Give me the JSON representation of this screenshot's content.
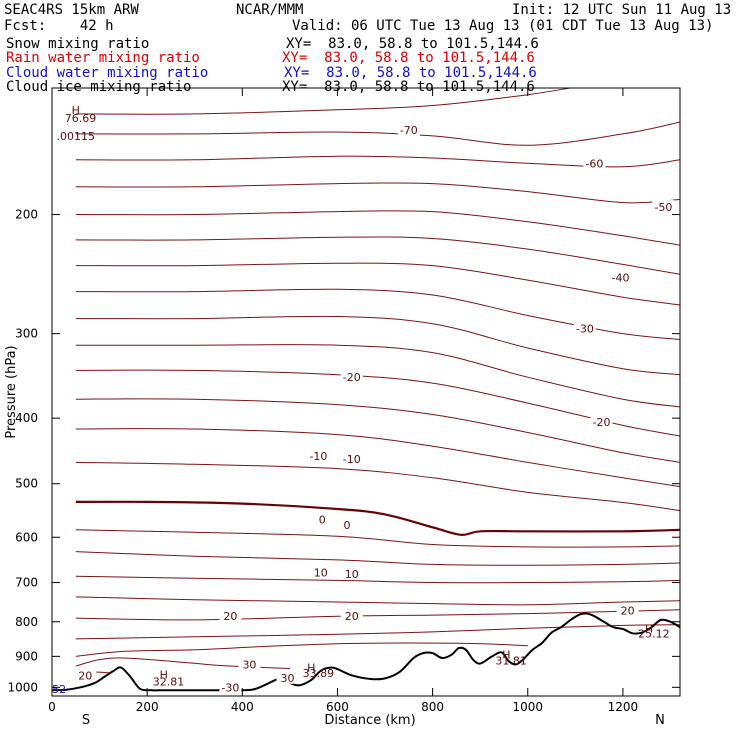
{
  "header": {
    "model": "SEAC4RS 15km ARW",
    "center": "NCAR/MMM",
    "init": "Init: 12 UTC Sun 11 Aug 13",
    "fcst": "Fcst:    42 h",
    "valid": "Valid: 06 UTC Tue 13 Aug 13 (01 CDT Tue 13 Aug 13)",
    "fields": [
      {
        "label": "Snow mixing ratio",
        "xy": "XY=  83.0, 58.8 to 101.5,144.6",
        "color": "#000000"
      },
      {
        "label": "Rain water mixing ratio",
        "xy": "XY=  83.0, 58.8 to 101.5,144.6",
        "color": "#e00000"
      },
      {
        "label": "Cloud water mixing ratio",
        "xy": "XY=  83.0, 58.8 to 101.5,144.6",
        "color": "#1010d0"
      },
      {
        "label": "Cloud ice mixing ratio",
        "xy": "XY=  83.0, 58.8 to 101.5,144.6",
        "color": "#000000"
      }
    ]
  },
  "chart_data": {
    "type": "line",
    "xlabel": "Distance (km)",
    "ylabel": "Pressure (hPa)",
    "xlim": [
      0,
      1320
    ],
    "ylim": [
      1030,
      130
    ],
    "yscale": "log",
    "x_ticks": [
      0,
      200,
      400,
      600,
      800,
      1000,
      1200
    ],
    "y_ticks": [
      200,
      300,
      400,
      500,
      600,
      700,
      800,
      900,
      1000
    ],
    "left_end_label": "S",
    "right_end_label": "N",
    "isotherm_interval_C": 5,
    "contour_color": "#7a1414",
    "zero_contour_color": "#6a0000",
    "terrain_color": "#000000",
    "contour_labels": [
      {
        "text": "-70",
        "x": 750,
        "p": 150
      },
      {
        "text": "-60",
        "x": 1140,
        "p": 168
      },
      {
        "text": "-50",
        "x": 1285,
        "p": 195
      },
      {
        "text": "-40",
        "x": 1195,
        "p": 248
      },
      {
        "text": "-30",
        "x": 1120,
        "p": 295
      },
      {
        "text": "-20",
        "x": 630,
        "p": 348
      },
      {
        "text": "-20",
        "x": 1155,
        "p": 405
      },
      {
        "text": "-10",
        "x": 560,
        "p": 455
      },
      {
        "text": "-10",
        "x": 630,
        "p": 460
      },
      {
        "text": "0",
        "x": 568,
        "p": 565
      },
      {
        "text": "0",
        "x": 620,
        "p": 575
      },
      {
        "text": "10",
        "x": 565,
        "p": 676
      },
      {
        "text": "10",
        "x": 630,
        "p": 680
      },
      {
        "text": "20",
        "x": 375,
        "p": 785
      },
      {
        "text": "20",
        "x": 630,
        "p": 785
      },
      {
        "text": "20",
        "x": 1210,
        "p": 770
      },
      {
        "text": "30",
        "x": 415,
        "p": 925
      },
      {
        "text": "30",
        "x": 495,
        "p": 968
      },
      {
        "text": "-30",
        "x": 375,
        "p": 1000
      },
      {
        "text": "20",
        "x": 70,
        "p": 960
      }
    ],
    "extrema": [
      {
        "text": "H",
        "x": 50,
        "p": 140
      },
      {
        "text": "76.69",
        "x": 60,
        "p": 144
      },
      {
        "text": ".00115",
        "x": 50,
        "p": 153
      },
      {
        "text": "H",
        "x": 235,
        "p": 958
      },
      {
        "text": "32.81",
        "x": 245,
        "p": 980
      },
      {
        "text": "H",
        "x": 545,
        "p": 935
      },
      {
        "text": "33.89",
        "x": 560,
        "p": 952
      },
      {
        "text": "H",
        "x": 955,
        "p": 895
      },
      {
        "text": "31.81",
        "x": 965,
        "p": 912
      },
      {
        "text": "H",
        "x": 1255,
        "p": 818
      },
      {
        "text": "25.12",
        "x": 1265,
        "p": 832
      },
      {
        "text": "52",
        "x": 15,
        "p": 1005
      }
    ],
    "terrain": {
      "x": [
        0,
        30,
        60,
        90,
        110,
        130,
        145,
        165,
        185,
        210,
        240,
        300,
        360,
        420,
        450,
        470,
        485,
        500,
        520,
        545,
        565,
        585,
        600,
        630,
        670,
        700,
        730,
        760,
        780,
        800,
        820,
        840,
        855,
        870,
        885,
        900,
        925,
        945,
        960,
        975,
        990,
        1010,
        1030,
        1050,
        1070,
        1090,
        1110,
        1125,
        1140,
        1160,
        1180,
        1200,
        1220,
        1240,
        1260,
        1280,
        1300,
        1320
      ],
      "p": [
        1010,
        1008,
        1000,
        985,
        965,
        945,
        935,
        965,
        1005,
        1010,
        1010,
        1010,
        1010,
        1008,
        990,
        975,
        970,
        985,
        993,
        975,
        945,
        935,
        940,
        960,
        972,
        970,
        950,
        905,
        890,
        890,
        905,
        895,
        875,
        880,
        910,
        922,
        900,
        888,
        915,
        925,
        910,
        880,
        860,
        830,
        815,
        795,
        780,
        778,
        785,
        800,
        815,
        820,
        832,
        830,
        815,
        795,
        800,
        815
      ]
    },
    "isotherms": [
      {
        "t": -70,
        "x": [
          50,
          300,
          600,
          800,
          1000,
          1150,
          1320
        ],
        "p": [
          142,
          142,
          140,
          138,
          133,
          128,
          124
        ]
      },
      {
        "t": -65,
        "x": [
          50,
          300,
          600,
          800,
          1000,
          1200,
          1320
        ],
        "p": [
          152,
          152,
          151,
          153,
          158,
          152,
          146
        ]
      },
      {
        "t": -60,
        "x": [
          50,
          300,
          600,
          800,
          1000,
          1200,
          1320
        ],
        "p": [
          166,
          166,
          164,
          165,
          168,
          170,
          166
        ]
      },
      {
        "t": -55,
        "x": [
          50,
          300,
          600,
          800,
          1000,
          1200,
          1320
        ],
        "p": [
          182,
          182,
          180,
          180,
          185,
          192,
          190
        ]
      },
      {
        "t": -50,
        "x": [
          50,
          300,
          600,
          800,
          1000,
          1200,
          1320
        ],
        "p": [
          200,
          200,
          198,
          198,
          205,
          215,
          222
        ]
      },
      {
        "t": -45,
        "x": [
          50,
          300,
          600,
          800,
          1000,
          1200,
          1320
        ],
        "p": [
          218,
          218,
          216,
          217,
          225,
          237,
          245
        ]
      },
      {
        "t": -40,
        "x": [
          50,
          300,
          600,
          800,
          1000,
          1200,
          1320
        ],
        "p": [
          238,
          238,
          236,
          238,
          250,
          265,
          272
        ]
      },
      {
        "t": -35,
        "x": [
          50,
          300,
          600,
          800,
          1000,
          1200,
          1320
        ],
        "p": [
          260,
          260,
          258,
          263,
          282,
          300,
          306
        ]
      },
      {
        "t": -30,
        "x": [
          50,
          300,
          600,
          800,
          1000,
          1200,
          1320
        ],
        "p": [
          285,
          285,
          283,
          290,
          315,
          338,
          345
        ]
      },
      {
        "t": -25,
        "x": [
          50,
          300,
          600,
          800,
          1000,
          1200,
          1320
        ],
        "p": [
          312,
          312,
          312,
          320,
          348,
          375,
          385
        ]
      },
      {
        "t": -20,
        "x": [
          50,
          300,
          600,
          800,
          1000,
          1200,
          1320
        ],
        "p": [
          340,
          340,
          345,
          355,
          380,
          410,
          425
        ]
      },
      {
        "t": -15,
        "x": [
          50,
          300,
          600,
          800,
          1000,
          1200,
          1320
        ],
        "p": [
          375,
          375,
          382,
          395,
          420,
          450,
          465
        ]
      },
      {
        "t": -10,
        "x": [
          50,
          300,
          600,
          800,
          1000,
          1200,
          1320
        ],
        "p": [
          415,
          415,
          423,
          440,
          465,
          490,
          505
        ]
      },
      {
        "t": -5,
        "x": [
          50,
          300,
          600,
          800,
          1000,
          1200,
          1320
        ],
        "p": [
          465,
          468,
          475,
          490,
          515,
          533,
          548
        ]
      },
      {
        "t": 0,
        "x": [
          50,
          200,
          400,
          600,
          700,
          800,
          860,
          900,
          1000,
          1200,
          1320
        ],
        "p": [
          532,
          532,
          535,
          545,
          555,
          580,
          595,
          588,
          588,
          588,
          585
        ]
      },
      {
        "t": 5,
        "x": [
          50,
          300,
          600,
          800,
          1000,
          1200,
          1320
        ],
        "p": [
          585,
          590,
          598,
          615,
          620,
          620,
          618
        ]
      },
      {
        "t": 10,
        "x": [
          50,
          300,
          600,
          800,
          1000,
          1200,
          1320
        ],
        "p": [
          630,
          640,
          648,
          658,
          660,
          658,
          655
        ]
      },
      {
        "t": 15,
        "x": [
          50,
          300,
          600,
          800,
          1000,
          1200,
          1320
        ],
        "p": [
          685,
          690,
          695,
          700,
          700,
          698,
          695
        ]
      },
      {
        "t": 20,
        "x": [
          50,
          300,
          600,
          800,
          1000,
          1200,
          1320
        ],
        "p": [
          735,
          742,
          748,
          752,
          755,
          748,
          745
        ]
      },
      {
        "t": 25,
        "x": [
          50,
          300,
          600,
          800,
          1000,
          1200,
          1320
        ],
        "p": [
          790,
          795,
          785,
          782,
          778,
          772,
          768
        ]
      },
      {
        "t": 30,
        "x": [
          50,
          300,
          600,
          800,
          1000,
          1200,
          1320
        ],
        "p": [
          848,
          842,
          835,
          828,
          818,
          810,
          808
        ]
      },
      {
        "t": 35,
        "x": [
          50,
          150,
          300,
          450,
          600,
          750,
          900,
          1000
        ],
        "p": [
          900,
          885,
          880,
          870,
          862,
          860,
          862,
          868
        ]
      },
      {
        "t": 40,
        "x": [
          50,
          100,
          150,
          250,
          350,
          450,
          500
        ],
        "p": [
          930,
          910,
          905,
          915,
          928,
          935,
          938
        ]
      },
      {
        "t": 45,
        "x": [
          50,
          90,
          120
        ],
        "p": [
          958,
          950,
          952
        ]
      }
    ]
  }
}
